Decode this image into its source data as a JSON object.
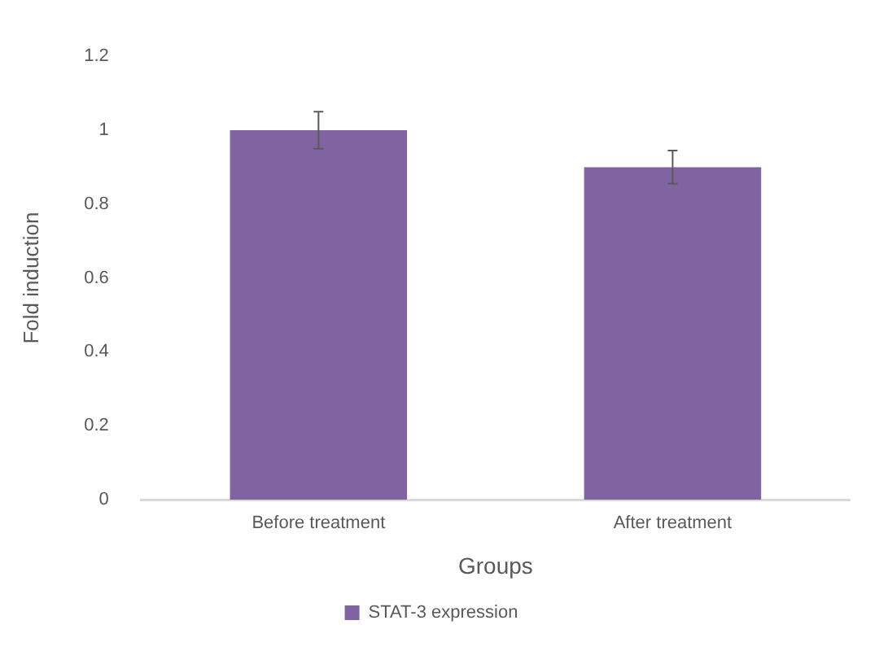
{
  "chart_data": {
    "type": "bar",
    "xlabel": "Groups",
    "ylabel": "Fold induction",
    "categories": [
      "Before treatment",
      "After treatment"
    ],
    "series": [
      {
        "name": "STAT-3 expression",
        "color": "#8064a2",
        "values": [
          1.0,
          0.9
        ],
        "errors": [
          0.05,
          0.045
        ]
      }
    ],
    "ylim": [
      0,
      1.2
    ],
    "yticks": [
      0,
      0.2,
      0.4,
      0.6,
      0.8,
      1,
      1.2
    ],
    "grid": false,
    "legend": "bottom"
  }
}
